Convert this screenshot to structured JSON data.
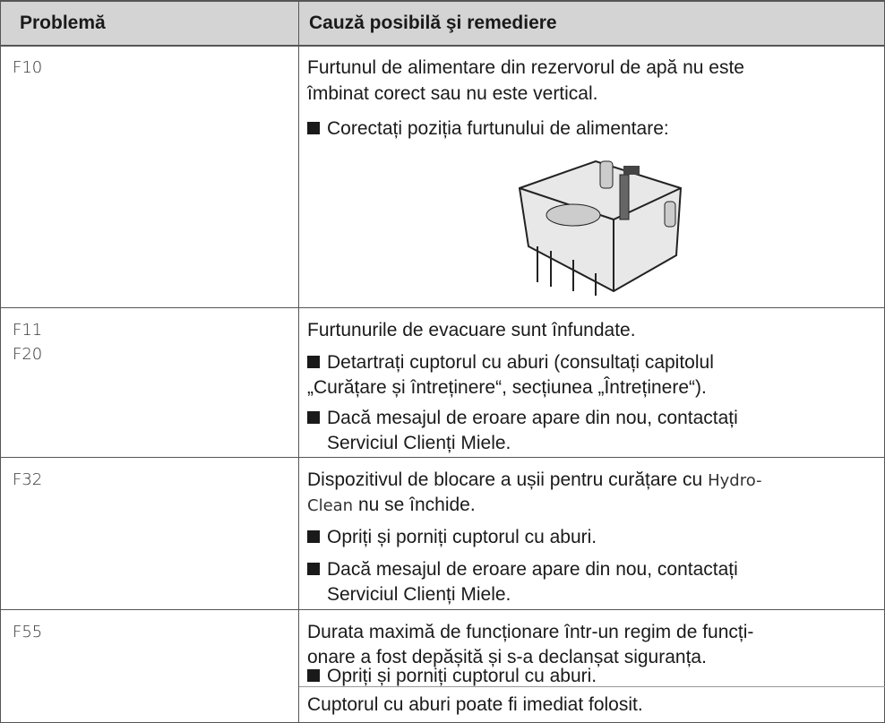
{
  "table": {
    "header": [
      "Problemă",
      "Cauză posibilă şi remediere"
    ],
    "rows": [
      {
        "codes": [
          "F10"
        ],
        "lines": [
          "Furtunul de alimentare din rezervorul de apă nu este",
          "îmbinat corect sau nu este vertical."
        ],
        "bullets": [
          [
            "Corectați poziția furtunului de alimentare:"
          ]
        ]
      },
      {
        "codes": [
          "F11",
          "F20"
        ],
        "lines": [
          "Furtunurile de evacuare sunt înfundate."
        ],
        "bullets": [
          [
            "Detartrați cuptorul cu aburi (consultați capitolul",
            "„Curățare și întreținere“, secțiunea „Întreținere“)."
          ],
          [
            "Dacă mesajul de eroare apare din nou, contactați",
            "Serviciul Clienți Miele."
          ]
        ]
      },
      {
        "codes": [
          "F32"
        ],
        "lines": [
          "Dispozitivul de blocare a ușii pentru curățare cu",
          "nu se închide."
        ],
        "brand": [
          "Hydro-",
          "Clean"
        ],
        "bullets": [
          [
            "Opriți și porniți cuptorul cu aburi."
          ],
          [
            "Dacă mesajul de eroare apare din nou, contactați",
            "Serviciul Clienți Miele."
          ]
        ]
      },
      {
        "codes": [
          "F55"
        ],
        "lines": [
          "Durata maximă de funcționare într-un regim de funcți-",
          "onare a fost depășită și s-a declanșat siguranța."
        ],
        "bullets": [
          [
            "Opriți și porniți cuptorul cu aburi."
          ]
        ],
        "note": "Cuptorul cu aburi poate fi imediat folosit."
      }
    ]
  }
}
